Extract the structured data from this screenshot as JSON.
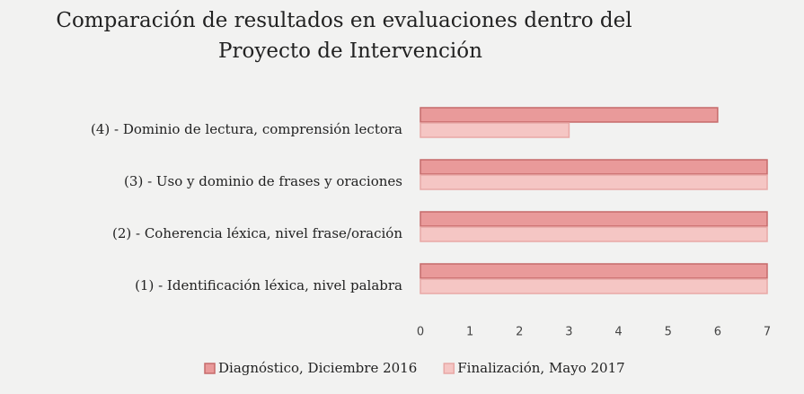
{
  "chart_data": {
    "type": "hbar",
    "title": [
      "Comparación de resultados en evaluaciones dentro del",
      "Proyecto de Intervención"
    ],
    "categories": [
      "(1) - Identificación léxica, nivel palabra",
      "(2) - Coherencia léxica, nivel frase/oración",
      "(3) - Uso y dominio de frases y oraciones",
      "(4) - Dominio de lectura, comprensión lectora"
    ],
    "series": [
      {
        "name": "Diagnóstico, Diciembre 2016",
        "color": "#e99a9a",
        "values": [
          7,
          7,
          7,
          6
        ]
      },
      {
        "name": "Finalización, Mayo 2017",
        "color": "#f5c6c4",
        "values": [
          7,
          7,
          7,
          3
        ]
      }
    ],
    "xlim": [
      0,
      7
    ],
    "xticks": [
      0,
      1,
      2,
      3,
      4,
      5,
      6,
      7
    ],
    "grid": false,
    "legend": "bottom"
  }
}
